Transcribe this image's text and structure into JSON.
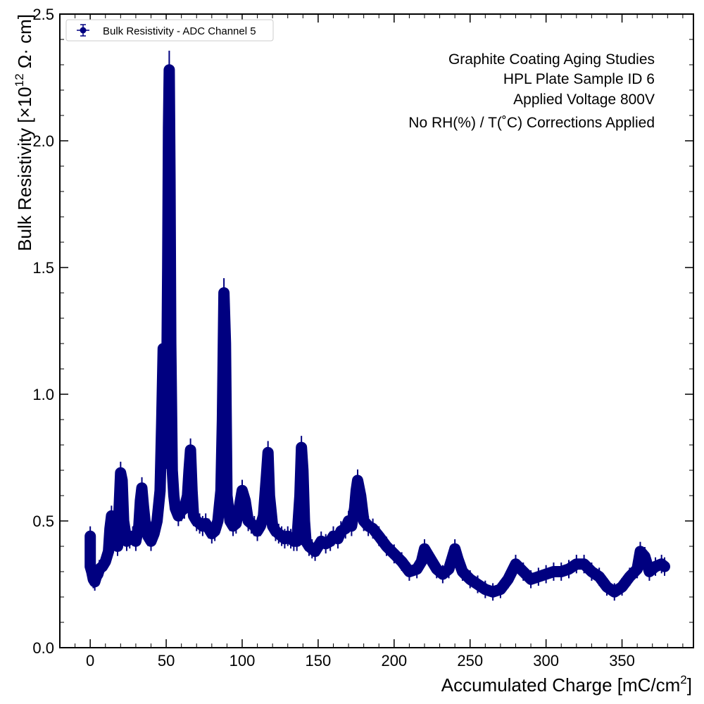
{
  "chart_data": {
    "type": "scatter",
    "xlabel": "Accumulated Charge [mC/cm",
    "xlabel_sup": "2",
    "xlabel_end": "]",
    "ylabel": "Bulk Resistivity [×10",
    "ylabel_sup": "12",
    "ylabel_end": " Ω· cm]",
    "xlim": [
      -20,
      397
    ],
    "ylim": [
      0,
      2.5
    ],
    "xticks": [
      0,
      50,
      100,
      150,
      200,
      250,
      300,
      350
    ],
    "xtick_labels": [
      "0",
      "50",
      "100",
      "150",
      "200",
      "250",
      "300",
      "350"
    ],
    "yticks": [
      0,
      0.5,
      1.0,
      1.5,
      2.0,
      2.5
    ],
    "ytick_labels": [
      "0.0",
      "0.5",
      "1.0",
      "1.5",
      "2.0",
      "2.5"
    ],
    "legend": {
      "label": "Bulk Resistivity - ADC Channel 5",
      "placement": "top-left"
    },
    "annotations": [
      "Graphite Coating Aging Studies",
      "HPL Plate Sample ID 6",
      "Applied Voltage 800V",
      "No RH(%) / T(˚C) Corrections Applied"
    ],
    "color": "#000080",
    "grid": false,
    "series": [
      {
        "name": "Bulk Resistivity - ADC Channel 5",
        "x": [
          0,
          0,
          0,
          1,
          2,
          3,
          4,
          5,
          6,
          8,
          10,
          12,
          13,
          14,
          16,
          18,
          19,
          20,
          21,
          22,
          24,
          26,
          28,
          30,
          32,
          33,
          34,
          35,
          36,
          38,
          40,
          42,
          44,
          46,
          47,
          48,
          49,
          50,
          51,
          51.5,
          52,
          52.5,
          53,
          54,
          55,
          56,
          58,
          60,
          62,
          64,
          65,
          66,
          67,
          68,
          70,
          72,
          74,
          76,
          78,
          80,
          82,
          84,
          86,
          87,
          88,
          89,
          90,
          92,
          94,
          96,
          98,
          100,
          102,
          104,
          106,
          108,
          110,
          112,
          114,
          116,
          117,
          118,
          120,
          122,
          124,
          126,
          128,
          130,
          132,
          134,
          136,
          138,
          139,
          140,
          141,
          142,
          144,
          146,
          148,
          150,
          152,
          155,
          158,
          160,
          163,
          165,
          168,
          170,
          172,
          174,
          175,
          176,
          178,
          180,
          183,
          186,
          190,
          195,
          200,
          205,
          210,
          215,
          218,
          220,
          222,
          225,
          228,
          232,
          236,
          240,
          242,
          245,
          250,
          255,
          260,
          265,
          270,
          275,
          280,
          285,
          290,
          295,
          300,
          305,
          310,
          315,
          320,
          325,
          330,
          335,
          340,
          345,
          350,
          355,
          360,
          362,
          365,
          368,
          372,
          376,
          378
        ],
        "y": [
          0.44,
          0.38,
          0.32,
          0.3,
          0.27,
          0.26,
          0.28,
          0.29,
          0.31,
          0.32,
          0.34,
          0.38,
          0.47,
          0.52,
          0.45,
          0.4,
          0.55,
          0.69,
          0.66,
          0.5,
          0.42,
          0.43,
          0.44,
          0.42,
          0.48,
          0.58,
          0.63,
          0.56,
          0.5,
          0.44,
          0.42,
          0.45,
          0.5,
          0.62,
          0.88,
          1.18,
          1.0,
          0.75,
          1.5,
          2.05,
          2.28,
          1.85,
          1.2,
          0.7,
          0.6,
          0.55,
          0.52,
          0.54,
          0.55,
          0.6,
          0.7,
          0.78,
          0.62,
          0.52,
          0.5,
          0.49,
          0.48,
          0.49,
          0.47,
          0.45,
          0.46,
          0.5,
          0.62,
          0.9,
          1.4,
          1.2,
          0.6,
          0.5,
          0.48,
          0.49,
          0.55,
          0.62,
          0.58,
          0.5,
          0.49,
          0.48,
          0.46,
          0.48,
          0.52,
          0.68,
          0.77,
          0.6,
          0.48,
          0.46,
          0.45,
          0.44,
          0.43,
          0.44,
          0.43,
          0.42,
          0.42,
          0.6,
          0.79,
          0.7,
          0.5,
          0.42,
          0.4,
          0.39,
          0.38,
          0.4,
          0.42,
          0.41,
          0.42,
          0.44,
          0.43,
          0.46,
          0.47,
          0.5,
          0.48,
          0.55,
          0.62,
          0.66,
          0.6,
          0.5,
          0.48,
          0.47,
          0.44,
          0.4,
          0.37,
          0.34,
          0.3,
          0.31,
          0.34,
          0.39,
          0.37,
          0.34,
          0.31,
          0.29,
          0.31,
          0.39,
          0.35,
          0.3,
          0.27,
          0.25,
          0.23,
          0.22,
          0.23,
          0.27,
          0.33,
          0.3,
          0.27,
          0.28,
          0.29,
          0.3,
          0.3,
          0.31,
          0.33,
          0.33,
          0.3,
          0.28,
          0.24,
          0.22,
          0.24,
          0.28,
          0.31,
          0.38,
          0.36,
          0.3,
          0.32,
          0.33,
          0.32
        ]
      }
    ]
  }
}
